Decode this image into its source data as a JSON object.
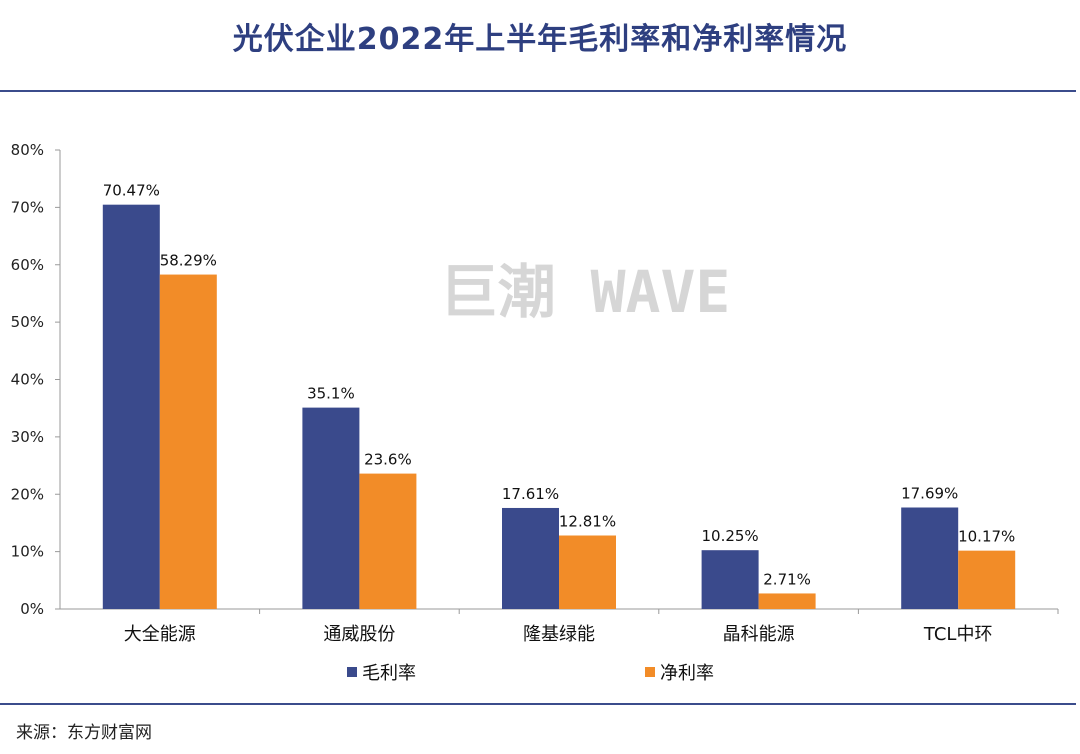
{
  "page": {
    "title": "光伏企业2022年上半年毛利率和净利率情况",
    "source": "来源：东方财富网",
    "watermark": "巨潮 WAVE"
  },
  "colors": {
    "title": "#2e3f80",
    "rule": "#3b4c8c",
    "series_gross": "#3a4a8c",
    "series_net": "#f28c28",
    "axis": "#9a9a9a"
  },
  "chart_data": {
    "type": "bar",
    "title": "光伏企业2022年上半年毛利率和净利率情况",
    "xlabel": "",
    "ylabel": "",
    "ylim": [
      0,
      80
    ],
    "yticks": [
      0,
      10,
      20,
      30,
      40,
      50,
      60,
      70,
      80
    ],
    "ytick_suffix": "%",
    "grid": false,
    "legend_position": "bottom",
    "categories": [
      "大全能源",
      "通威股份",
      "隆基绿能",
      "晶科能源",
      "TCL中环"
    ],
    "series": [
      {
        "name": "毛利率",
        "values": [
          70.47,
          35.1,
          17.61,
          10.25,
          17.69
        ],
        "labels": [
          "70.47%",
          "35.1%",
          "17.61%",
          "10.25%",
          "17.69%"
        ]
      },
      {
        "name": "净利率",
        "values": [
          58.29,
          23.6,
          12.81,
          2.71,
          10.17
        ],
        "labels": [
          "58.29%",
          "23.6%",
          "12.81%",
          "2.71%",
          "10.17%"
        ]
      }
    ]
  }
}
